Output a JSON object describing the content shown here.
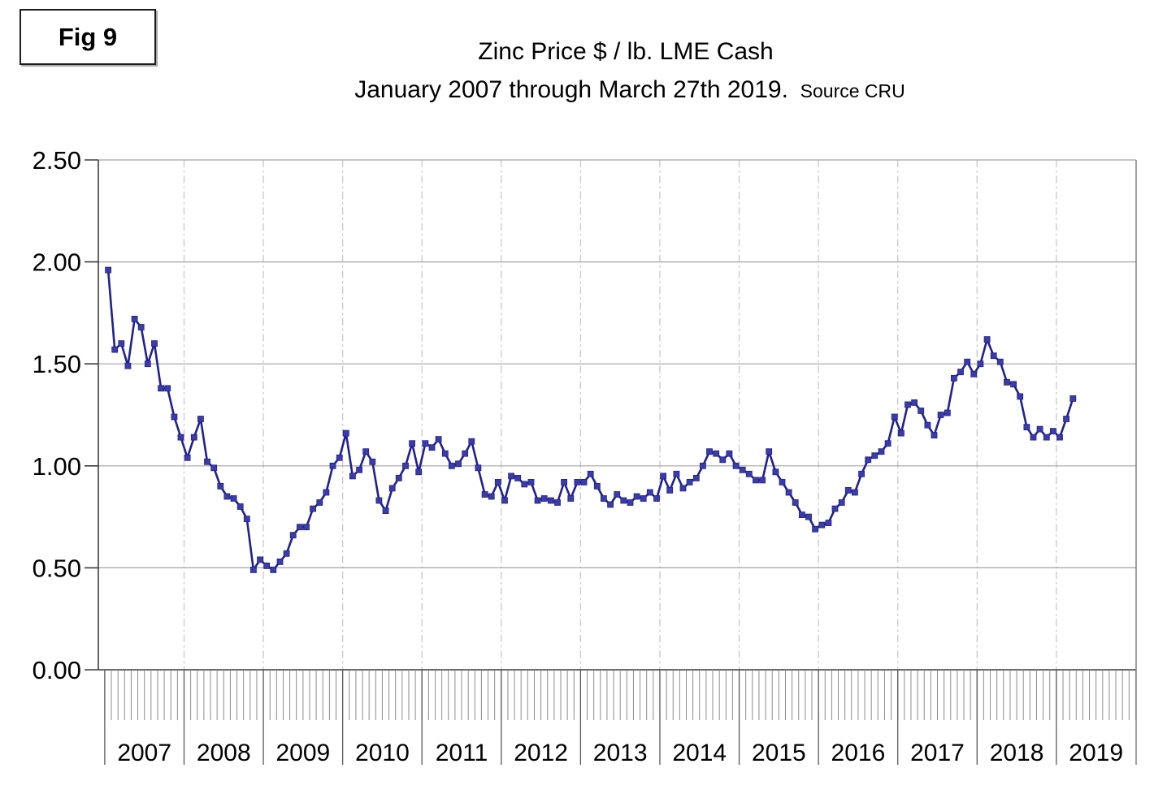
{
  "figure_label": "Fig 9",
  "title": "Zinc Price $ / lb. LME Cash",
  "subtitle": "January 2007 through March 27th 2019.",
  "source_note": "Source CRU",
  "chart_data": {
    "type": "line",
    "series_name": "Zinc price, LME cash, $/lb",
    "x_tick_unit": "month",
    "x_start": "Jan 2007",
    "x_end": "Mar 2019",
    "year_labels": [
      "2007",
      "2008",
      "2009",
      "2010",
      "2011",
      "2012",
      "2013",
      "2014",
      "2015",
      "2016",
      "2017",
      "2018",
      "2019"
    ],
    "y_tick_labels": [
      "0.00",
      "0.50",
      "1.00",
      "1.50",
      "2.00",
      "2.50"
    ],
    "ylim": [
      0,
      2.5
    ],
    "y_step": 0.5,
    "legend_position": "none",
    "grid": {
      "horizontal": "solid gray",
      "vertical": "dash-dot gray at year boundaries"
    },
    "line_color": "#20208f",
    "marker_color": "#3c3ca4",
    "marker_shape": "square",
    "values_by_year": {
      "2007": [
        1.96,
        1.57,
        1.6,
        1.49,
        1.72,
        1.68,
        1.5,
        1.6,
        1.38,
        1.38,
        1.24,
        1.14
      ],
      "2008": [
        1.04,
        1.14,
        1.23,
        1.02,
        0.99,
        0.9,
        0.85,
        0.84,
        0.8,
        0.74,
        0.49,
        0.54
      ],
      "2009": [
        0.51,
        0.49,
        0.53,
        0.57,
        0.66,
        0.7,
        0.7,
        0.79,
        0.82,
        0.87,
        1.0,
        1.04
      ],
      "2010": [
        1.16,
        0.95,
        0.98,
        1.07,
        1.02,
        0.83,
        0.78,
        0.89,
        0.94,
        1.0,
        1.11,
        0.97
      ],
      "2011": [
        1.11,
        1.09,
        1.13,
        1.06,
        1.0,
        1.01,
        1.06,
        1.12,
        0.99,
        0.86,
        0.85,
        0.92
      ],
      "2012": [
        0.83,
        0.95,
        0.94,
        0.91,
        0.92,
        0.83,
        0.84,
        0.83,
        0.82,
        0.92,
        0.84,
        0.92
      ],
      "2013": [
        0.92,
        0.96,
        0.9,
        0.84,
        0.81,
        0.86,
        0.83,
        0.82,
        0.85,
        0.84,
        0.87,
        0.84
      ],
      "2014": [
        0.95,
        0.88,
        0.96,
        0.89,
        0.92,
        0.94,
        1.0,
        1.07,
        1.06,
        1.03,
        1.06,
        1.0
      ],
      "2015": [
        0.98,
        0.96,
        0.93,
        0.93,
        1.07,
        0.97,
        0.92,
        0.87,
        0.82,
        0.76,
        0.75,
        0.69
      ],
      "2016": [
        0.71,
        0.72,
        0.79,
        0.82,
        0.88,
        0.87,
        0.96,
        1.03,
        1.05,
        1.07,
        1.11,
        1.24
      ],
      "2017": [
        1.16,
        1.3,
        1.31,
        1.27,
        1.2,
        1.15,
        1.25,
        1.26,
        1.43,
        1.46,
        1.51,
        1.45
      ],
      "2018": [
        1.5,
        1.62,
        1.54,
        1.51,
        1.41,
        1.4,
        1.34,
        1.19,
        1.14,
        1.18,
        1.14,
        1.17
      ],
      "2019": [
        1.14,
        1.23,
        1.33
      ]
    }
  }
}
